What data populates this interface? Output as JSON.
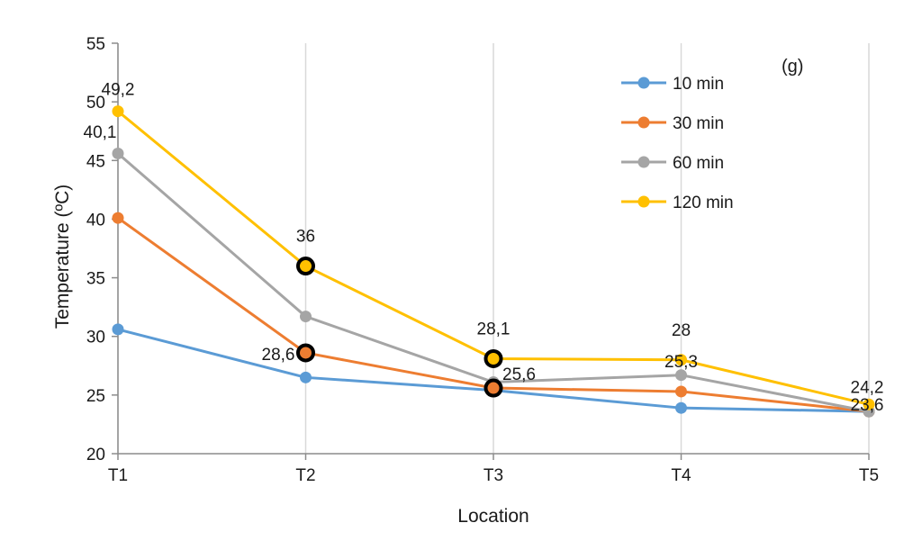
{
  "chart_data": {
    "type": "line",
    "panel_label": "(g)",
    "xlabel": "Location",
    "ylabel": "Temperature (ºC)",
    "categories": [
      "T1",
      "T2",
      "T3",
      "T4",
      "T5"
    ],
    "ylim": [
      20,
      55
    ],
    "yticks": [
      20,
      25,
      30,
      35,
      40,
      45,
      50,
      55
    ],
    "grid": {
      "vertical": true,
      "horizontal": false
    },
    "legend_position": "top-right",
    "series": [
      {
        "name": "10 min",
        "color": "#5B9BD5",
        "values": [
          30.6,
          26.5,
          25.4,
          23.9,
          23.6
        ]
      },
      {
        "name": "30 min",
        "color": "#ED7D31",
        "values": [
          40.1,
          28.6,
          25.6,
          25.3,
          23.6
        ]
      },
      {
        "name": "60 min",
        "color": "#A5A5A5",
        "values": [
          45.6,
          31.7,
          26.1,
          26.7,
          23.6
        ]
      },
      {
        "name": "120 min",
        "color": "#FFC000",
        "values": [
          49.2,
          36.0,
          28.1,
          28.0,
          24.2
        ]
      }
    ],
    "data_labels": [
      {
        "series": 3,
        "index": 0,
        "text": "49,2"
      },
      {
        "series": 1,
        "index": 0,
        "text": "40,1"
      },
      {
        "series": 3,
        "index": 1,
        "text": "36",
        "highlight": true
      },
      {
        "series": 1,
        "index": 1,
        "text": "28,6",
        "highlight": true
      },
      {
        "series": 3,
        "index": 2,
        "text": "28,1",
        "highlight": true
      },
      {
        "series": 1,
        "index": 2,
        "text": "25,6",
        "highlight": true
      },
      {
        "series": 3,
        "index": 3,
        "text": "28"
      },
      {
        "series": 1,
        "index": 3,
        "text": "25,3"
      },
      {
        "series": 3,
        "index": 4,
        "text": "24,2"
      },
      {
        "series": 1,
        "index": 4,
        "text": "23,6"
      }
    ]
  }
}
